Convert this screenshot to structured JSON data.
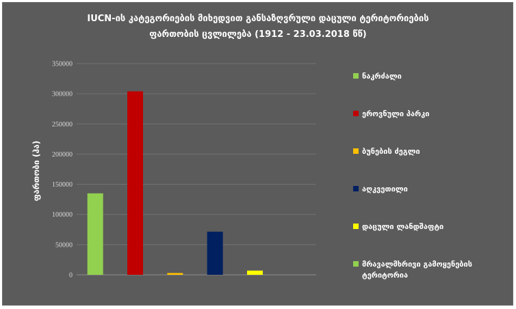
{
  "chart_data": {
    "type": "bar",
    "title_line1": "IUCN-ის კატეგორიების მიხედვით განსაზღვრული დაცული ტერიტორიების",
    "title_line2": "ფართობის ცვლილება (1912 - 23.03.2018 წწ)",
    "xlabel": "",
    "ylabel": "ფართობი (ჰა)",
    "ylim": [
      0,
      350000
    ],
    "yticks": [
      0,
      50000,
      100000,
      150000,
      200000,
      250000,
      300000,
      350000
    ],
    "ytick_labels": [
      "0",
      "50000",
      "100000",
      "150000",
      "200000",
      "250000",
      "300000",
      "350000"
    ],
    "grid": true,
    "legend_position": "right",
    "series": [
      {
        "name": "ნაკრძალი",
        "value": 135000,
        "color": "#92d050"
      },
      {
        "name": "ეროვნული პარკი",
        "value": 304000,
        "color": "#c00000"
      },
      {
        "name": "ბუნების ძეგლი",
        "value": 3000,
        "color": "#ffc000"
      },
      {
        "name": "აღკვეთილი",
        "value": 71500,
        "color": "#002060"
      },
      {
        "name": "დაცული ლანდშაფტი",
        "value": 7000,
        "color": "#ffff00"
      },
      {
        "name": "მრავალმხრივი გამოყენების ტერიტორია",
        "value": 0,
        "color": "#92d050"
      }
    ]
  }
}
